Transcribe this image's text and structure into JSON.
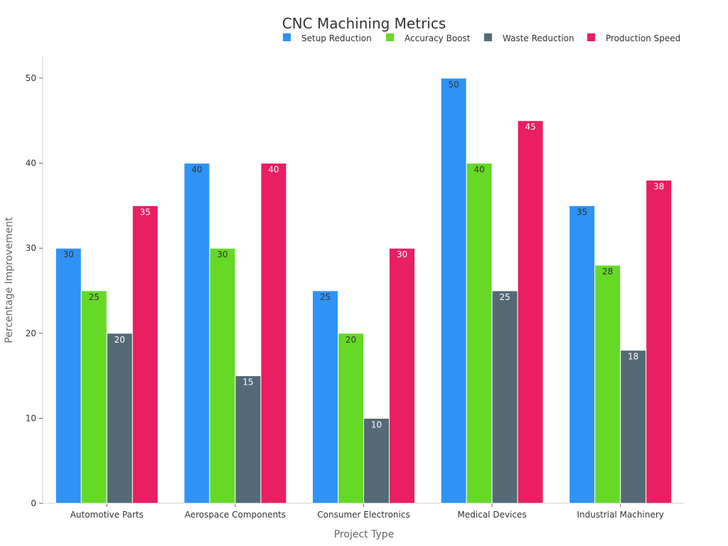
{
  "chart_data": {
    "type": "bar",
    "title": "CNC Machining Metrics",
    "xlabel": "Project Type",
    "ylabel": "Percentage Improvement",
    "categories": [
      "Automotive Parts",
      "Aerospace Components",
      "Consumer Electronics",
      "Medical Devices",
      "Industrial Machinery"
    ],
    "series": [
      {
        "name": "Setup Reduction",
        "color": "#2e93f5",
        "label_color": "#333333",
        "values": [
          30,
          40,
          25,
          50,
          35
        ]
      },
      {
        "name": "Accuracy Boost",
        "color": "#66d927",
        "label_color": "#333333",
        "values": [
          25,
          30,
          20,
          40,
          28
        ]
      },
      {
        "name": "Waste Reduction",
        "color": "#546a75",
        "label_color": "#ffffff",
        "values": [
          20,
          15,
          10,
          25,
          18
        ]
      },
      {
        "name": "Production Speed",
        "color": "#e91e63",
        "label_color": "#ffffff",
        "values": [
          35,
          40,
          30,
          45,
          38
        ]
      }
    ],
    "ylim": [
      0,
      52.5
    ],
    "yticks": [
      0,
      10,
      20,
      30,
      40,
      50
    ],
    "grid": false,
    "legend": "top-right"
  }
}
